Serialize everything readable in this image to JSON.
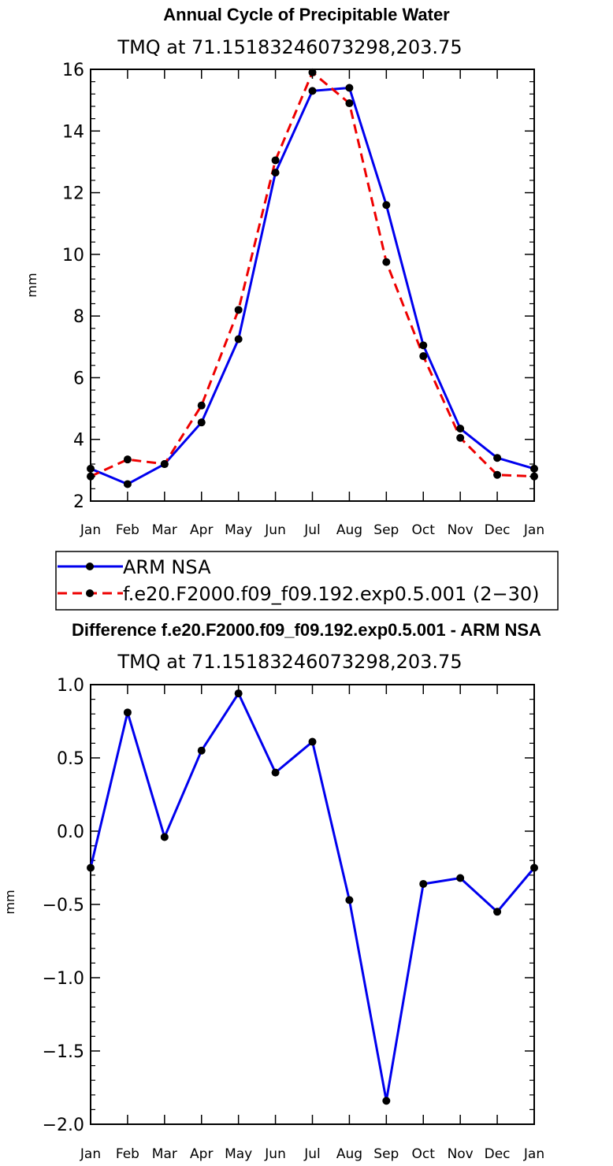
{
  "chart_data": [
    {
      "type": "line",
      "title": "Annual Cycle of Precipitable Water",
      "subtitle": "TMQ  at  71.15183246073298,203.75",
      "xlabel": "",
      "ylabel": "mm",
      "categories": [
        "Jan",
        "Feb",
        "Mar",
        "Apr",
        "May",
        "Jun",
        "Jul",
        "Aug",
        "Sep",
        "Oct",
        "Nov",
        "Dec",
        "Jan"
      ],
      "ylim": [
        2,
        16
      ],
      "yticks": [
        2,
        4,
        6,
        8,
        10,
        12,
        14,
        16
      ],
      "ytick_labels": [
        "2",
        "4",
        "6",
        "8",
        "10",
        "12",
        "14",
        "16"
      ],
      "series": [
        {
          "name": "ARM NSA",
          "color": "#0000ee",
          "dash": "solid",
          "values": [
            3.05,
            2.55,
            3.2,
            4.55,
            7.25,
            12.65,
            15.3,
            15.4,
            11.6,
            7.05,
            4.35,
            3.4,
            3.05
          ]
        },
        {
          "name": "f.e20.F2000.f09_f09.192.exp0.5.001 (2−30)",
          "color": "#ee0000",
          "dash": "dashed",
          "values": [
            2.8,
            3.35,
            3.2,
            5.1,
            8.2,
            13.05,
            15.9,
            14.9,
            9.75,
            6.7,
            4.05,
            2.85,
            2.8
          ]
        }
      ],
      "legend": "bottom-left"
    },
    {
      "type": "line",
      "title": "Difference f.e20.F2000.f09_f09.192.exp0.5.001 - ARM NSA",
      "subtitle": "TMQ  at  71.15183246073298,203.75",
      "xlabel": "",
      "ylabel": "mm",
      "categories": [
        "Jan",
        "Feb",
        "Mar",
        "Apr",
        "May",
        "Jun",
        "Jul",
        "Aug",
        "Sep",
        "Oct",
        "Nov",
        "Dec",
        "Jan"
      ],
      "ylim": [
        -2.0,
        1.0
      ],
      "yticks": [
        -2.0,
        -1.5,
        -1.0,
        -0.5,
        0.0,
        0.5,
        1.0
      ],
      "ytick_labels": [
        "−2.0",
        "−1.5",
        "−1.0",
        "−0.5",
        "0.0",
        "0.5",
        "1.0"
      ],
      "series": [
        {
          "name": "Difference",
          "color": "#0000ee",
          "dash": "solid",
          "values": [
            -0.25,
            0.81,
            -0.04,
            0.55,
            0.94,
            0.4,
            0.61,
            -0.47,
            -1.84,
            -0.36,
            -0.32,
            -0.55,
            -0.25
          ]
        }
      ]
    }
  ]
}
